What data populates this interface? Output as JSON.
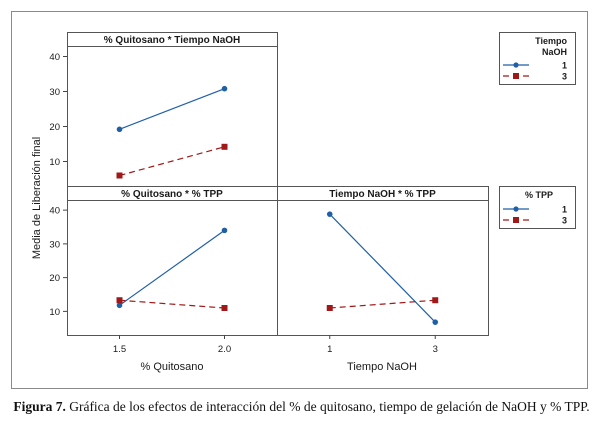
{
  "figure": {
    "y_label": "Media de Liberación final",
    "caption_label": "Figura 7.",
    "caption_text": "Gráfica de los efectos de interacción del % de quitosano, tiempo de gelación de NaOH y % TPP."
  },
  "colors": {
    "level_1": "#1f5fa8",
    "level_3": "#a01818",
    "frame": "#8a8a8a",
    "panel_border": "#555555"
  },
  "chart_data": [
    {
      "type": "line",
      "title": "% Quitosano * Tiempo NaOH",
      "categories": [
        "1.5",
        "2.0"
      ],
      "xlabel": "% Quitosano",
      "ylabel": "Media de Liberación final",
      "yticks": [
        "10",
        "20",
        "30",
        "40"
      ],
      "ylim": [
        3,
        43
      ],
      "legend_title": "Tiempo NaOH",
      "series": [
        {
          "name": "1",
          "values": [
            19.2,
            30.8
          ]
        },
        {
          "name": "3",
          "values": [
            6.0,
            14.2
          ]
        }
      ]
    },
    {
      "type": "line",
      "title": "% Quitosano * % TPP",
      "categories": [
        "1.5",
        "2.0"
      ],
      "xlabel": "% Quitosano",
      "ylabel": "Media de Liberación final",
      "yticks": [
        "10",
        "20",
        "30",
        "40"
      ],
      "ylim": [
        3,
        43
      ],
      "legend_title": "% TPP",
      "series": [
        {
          "name": "1",
          "values": [
            11.8,
            34.0
          ]
        },
        {
          "name": "3",
          "values": [
            13.3,
            11.0
          ]
        }
      ]
    },
    {
      "type": "line",
      "title": "Tiempo NaOH * % TPP",
      "categories": [
        "1",
        "3"
      ],
      "xlabel": "Tiempo NaOH",
      "ylabel": "Media de Liberación final",
      "yticks": [
        "10",
        "20",
        "30",
        "40"
      ],
      "ylim": [
        3,
        43
      ],
      "legend_title": "% TPP",
      "series": [
        {
          "name": "1",
          "values": [
            38.8,
            6.8
          ]
        },
        {
          "name": "3",
          "values": [
            11.0,
            13.3
          ]
        }
      ]
    }
  ]
}
